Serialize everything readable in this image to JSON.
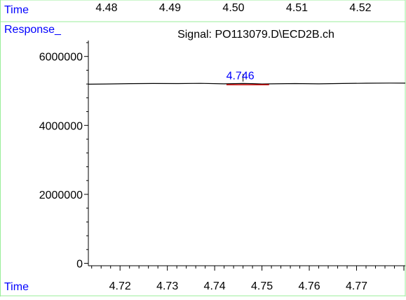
{
  "chart_data": {
    "type": "line",
    "title": "Signal: PO113079.D\\ECD2B.ch",
    "xlabel": "Time",
    "ylabel": "Response_",
    "top_axis_label": "Time",
    "top_ticks": [
      "4.48",
      "4.49",
      "4.50",
      "4.51",
      "4.52"
    ],
    "top_tick_values": [
      4.48,
      4.49,
      4.5,
      4.51,
      4.52
    ],
    "x_ticks": [
      "4.72",
      "4.73",
      "4.74",
      "4.75",
      "4.76",
      "4.77"
    ],
    "x_tick_values": [
      4.72,
      4.73,
      4.74,
      4.75,
      4.76,
      4.77
    ],
    "y_ticks": [
      "0",
      "2000000",
      "4000000",
      "6000000"
    ],
    "y_tick_values": [
      0,
      2000000,
      4000000,
      6000000
    ],
    "xlim": [
      4.7133,
      4.7803
    ],
    "ylim": [
      -70000,
      6460000
    ],
    "series": [
      {
        "x": [
          4.7133,
          4.717,
          4.722,
          4.727,
          4.732,
          4.737,
          4.742,
          4.744,
          4.746,
          4.748,
          4.75,
          4.752,
          4.757,
          4.762,
          4.767,
          4.772,
          4.777,
          4.7803
        ],
        "y": [
          5195000,
          5200000,
          5210000,
          5215000,
          5212000,
          5218000,
          5205000,
          5210000,
          5215000,
          5210000,
          5200000,
          5205000,
          5212000,
          5205000,
          5215000,
          5222000,
          5228000,
          5225000
        ]
      }
    ],
    "peak": {
      "label": "4.746",
      "x": 4.746
    },
    "baseline_segment": {
      "x_start": 4.7425,
      "x_end": 4.7515,
      "y": 5210000
    },
    "grid": false,
    "colors": {
      "axis": "#000000",
      "label": "#0000ff",
      "line": "#000000",
      "baseline": "#cc0000",
      "frame": "#99ee99"
    }
  }
}
